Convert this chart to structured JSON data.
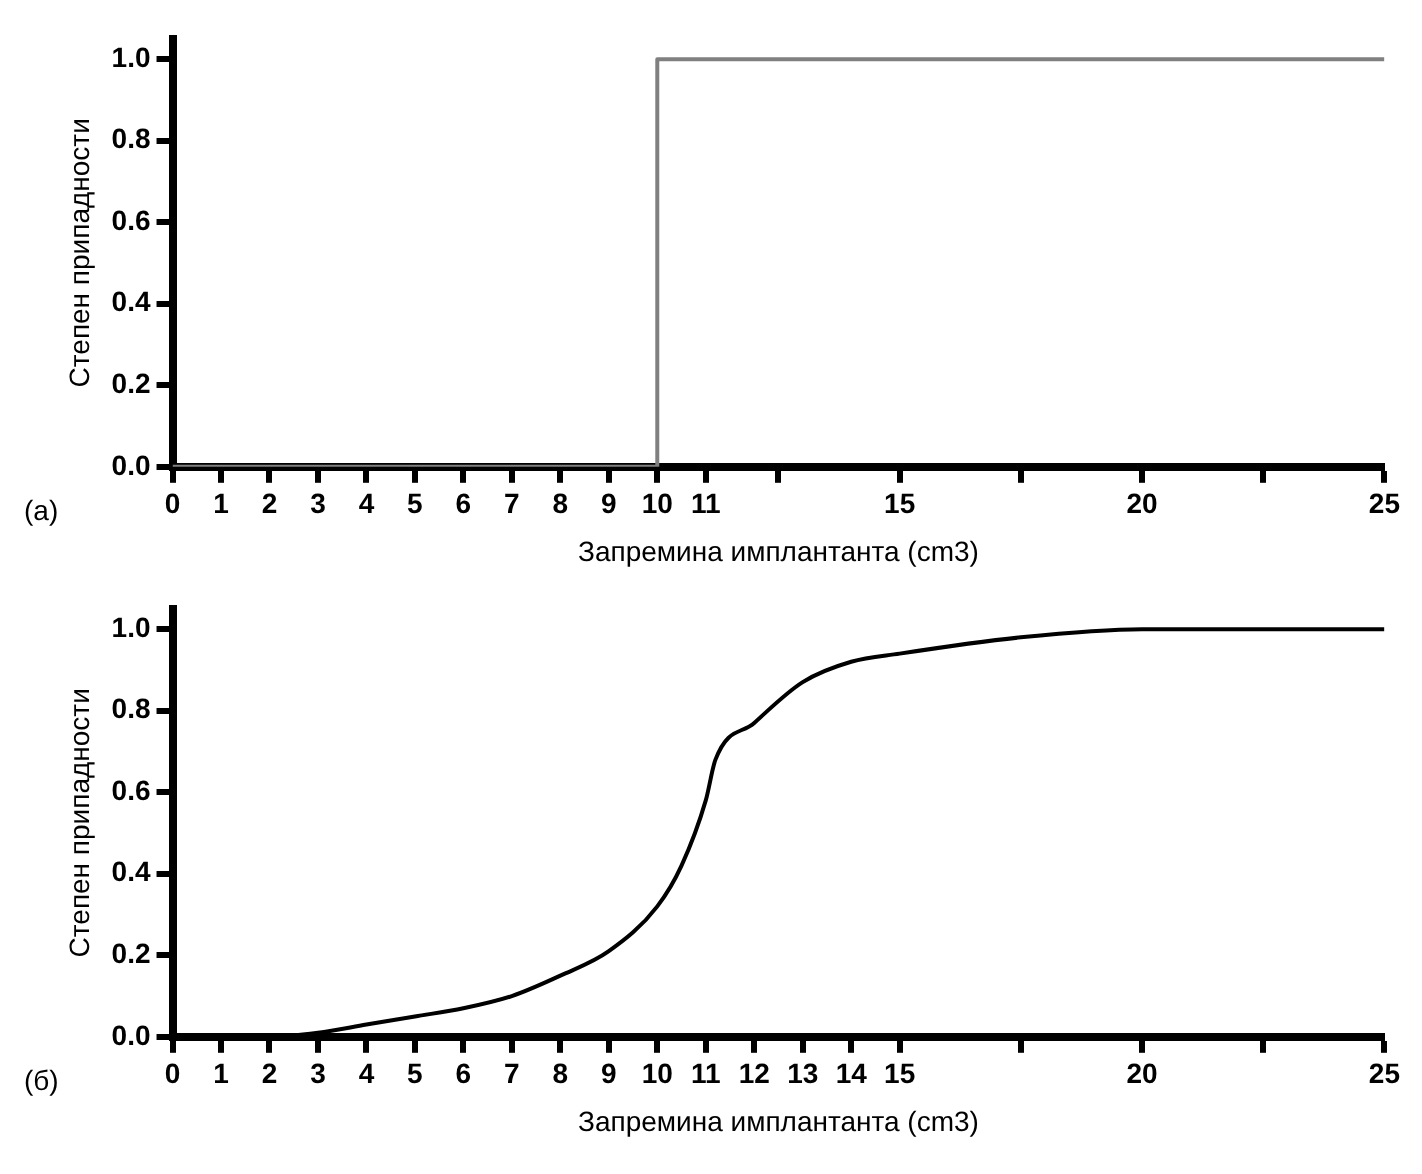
{
  "chart_data": [
    {
      "type": "step",
      "ylabel": "Степен припадности",
      "xlabel": "Запремина имплантанта (cm3)",
      "annotations": [
        "(a)"
      ],
      "x": [
        0,
        10,
        25
      ],
      "series": [
        {
          "color": "#808080",
          "values": [
            0,
            1,
            1
          ]
        }
      ],
      "xlim": [
        0,
        25
      ],
      "xticks": [
        0,
        1,
        2,
        3,
        4,
        5,
        6,
        7,
        8,
        9,
        10,
        11,
        {
          "value": 12.5,
          "label": null
        },
        15,
        {
          "value": 17.5,
          "label": null
        },
        20,
        {
          "value": 22.5,
          "label": null
        },
        25
      ],
      "ylim": [
        0,
        1.05
      ],
      "yticks": [
        {
          "value": 0,
          "label": "0.0"
        },
        {
          "value": 0.2,
          "label": "0.2"
        },
        {
          "value": 0.4,
          "label": "0.4"
        },
        {
          "value": 0.6,
          "label": "0.6"
        },
        {
          "value": 0.8,
          "label": "0.8"
        },
        {
          "value": 1,
          "label": "1.0"
        }
      ],
      "grid": false,
      "legend": false
    },
    {
      "type": "line",
      "ylabel": "Степен припадности",
      "xlabel": "Запремина имплантанта (cm3)",
      "annotations": [
        "(б)"
      ],
      "x": [
        0,
        1,
        2,
        3,
        4,
        5,
        6,
        7,
        8,
        9,
        10,
        10.5,
        11,
        11.2,
        12,
        13,
        14,
        15,
        17.5,
        20,
        25
      ],
      "series": [
        {
          "color": "#000000",
          "values": [
            0,
            0,
            0,
            0.01,
            0.03,
            0.05,
            0.07,
            0.1,
            0.15,
            0.21,
            0.32,
            0.42,
            0.58,
            0.68,
            0.77,
            0.87,
            0.92,
            0.94,
            0.98,
            1,
            1
          ]
        }
      ],
      "xlim": [
        0,
        25
      ],
      "xticks": [
        0,
        1,
        2,
        3,
        4,
        5,
        6,
        7,
        8,
        9,
        10,
        11,
        12,
        13,
        14,
        15,
        {
          "value": 17.5,
          "label": null
        },
        20,
        {
          "value": 22.5,
          "label": null
        },
        25
      ],
      "ylim": [
        0,
        1.05
      ],
      "yticks": [
        {
          "value": 0,
          "label": "0.0"
        },
        {
          "value": 0.2,
          "label": "0.2"
        },
        {
          "value": 0.4,
          "label": "0.4"
        },
        {
          "value": 0.6,
          "label": "0.6"
        },
        {
          "value": 0.8,
          "label": "0.8"
        },
        {
          "value": 1,
          "label": "1.0"
        }
      ],
      "grid": false,
      "legend": false
    }
  ]
}
